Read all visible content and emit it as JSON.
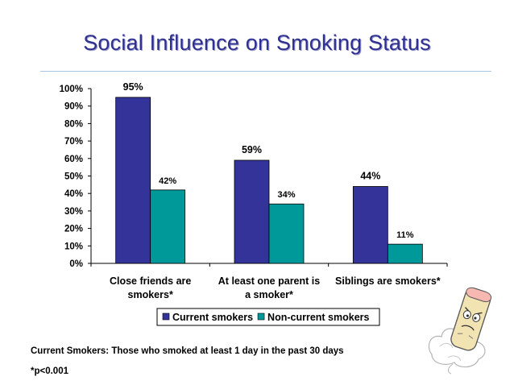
{
  "title": "Social Influence on Smoking Status",
  "footnotes": {
    "definition": "Current Smokers: Those who smoked at least 1 day in the past 30 days",
    "significance": "*p<0.001"
  },
  "colors": {
    "title": "#2e3192",
    "current": "#333399",
    "noncurrent": "#009999",
    "rule": "#a9c4e0"
  },
  "mascot_icon": "cigarette-character-icon",
  "chart_data": {
    "type": "bar",
    "categories": [
      [
        "Close friends are",
        "smokers*"
      ],
      [
        "At least one parent is",
        "a smoker*"
      ],
      [
        "Siblings are smokers*"
      ]
    ],
    "series": [
      {
        "name": "Current smokers",
        "values": [
          95,
          59,
          44
        ],
        "labels": [
          "95%",
          "59%",
          "44%"
        ]
      },
      {
        "name": "Non-current smokers",
        "values": [
          42,
          34,
          11
        ],
        "labels": [
          "42%",
          "34%",
          "11%"
        ]
      }
    ],
    "yticks": [
      "0%",
      "10%",
      "20%",
      "30%",
      "40%",
      "50%",
      "60%",
      "70%",
      "80%",
      "90%",
      "100%"
    ],
    "ylim": [
      0,
      100
    ],
    "legend_position": "bottom",
    "grid": false
  }
}
